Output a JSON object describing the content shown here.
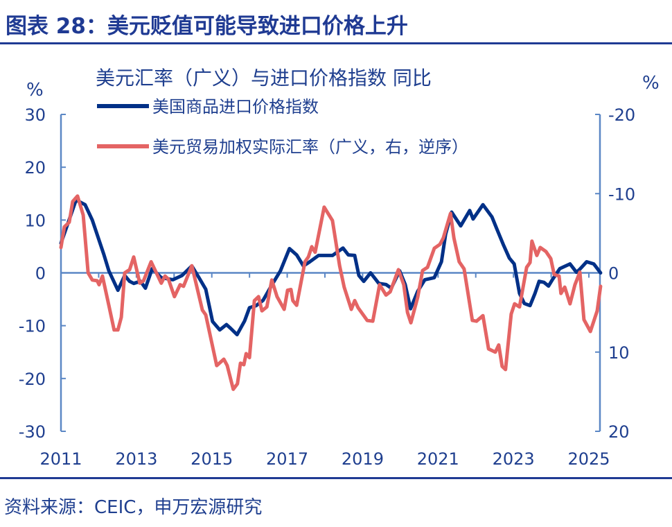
{
  "header": {
    "title": "图表 28：美元贬值可能导致进口价格上升"
  },
  "footer": {
    "source": "资料来源：CEIC，申万宏源研究"
  },
  "colors": {
    "accent": "#1f3a93",
    "axis": "#5b87c5",
    "series_blue": "#003087",
    "series_red": "#e46464"
  },
  "chart_data": {
    "type": "line",
    "title": "美元汇率（广义）与进口价格指数 同比",
    "ylabel_left": "%",
    "ylabel_right": "%",
    "ylim_left": [
      -30,
      30
    ],
    "ylim_right": [
      20,
      -20
    ],
    "right_axis_reversed": true,
    "xlim": [
      2011,
      2025.3
    ],
    "x_ticks": [
      "2011",
      "2013",
      "2015",
      "2017",
      "2019",
      "2021",
      "2023",
      "2025"
    ],
    "y_ticks_left": [
      "30",
      "20",
      "10",
      "0",
      "-10",
      "-20",
      "-30"
    ],
    "y_ticks_right": [
      "-20",
      "-10",
      "0",
      "10",
      "20"
    ],
    "grid": false,
    "legend": "top-left",
    "series": [
      {
        "name": "美国商品进口价格指数",
        "axis": "left",
        "x": [
          2011.0,
          2011.4,
          2011.64,
          2011.83,
          2012.14,
          2012.27,
          2012.51,
          2012.69,
          2012.82,
          2012.93,
          2013.11,
          2013.24,
          2013.42,
          2013.66,
          2013.97,
          2014.21,
          2014.47,
          2014.66,
          2014.84,
          2015.02,
          2015.21,
          2015.39,
          2015.5,
          2015.67,
          2015.87,
          2016.0,
          2016.18,
          2016.36,
          2016.6,
          2016.82,
          2017.06,
          2017.25,
          2017.43,
          2017.6,
          2017.83,
          2018.2,
          2018.48,
          2018.62,
          2018.79,
          2018.9,
          2019.03,
          2019.21,
          2019.43,
          2019.62,
          2019.76,
          2019.98,
          2020.13,
          2020.27,
          2020.46,
          2020.65,
          2020.9,
          2021.09,
          2021.2,
          2021.36,
          2021.6,
          2021.84,
          2021.93,
          2022.19,
          2022.43,
          2022.56,
          2022.74,
          2022.89,
          2023.02,
          2023.16,
          2023.29,
          2023.44,
          2023.57,
          2023.68,
          2023.81,
          2023.93,
          2024.04,
          2024.23,
          2024.5,
          2024.67,
          2024.76,
          2024.94,
          2025.13,
          2025.31
        ],
        "y": [
          5.6,
          13.8,
          12.9,
          10.0,
          3.4,
          0.4,
          -3.3,
          -0.5,
          -1.6,
          -2.0,
          -1.6,
          -2.9,
          0.8,
          -0.9,
          -1.3,
          -0.5,
          1.3,
          -0.9,
          -3.1,
          -9.2,
          -10.8,
          -9.8,
          -10.5,
          -11.7,
          -9.1,
          -6.6,
          -6.2,
          -5.2,
          -2.2,
          0.4,
          4.6,
          3.4,
          1.3,
          2.1,
          3.3,
          3.3,
          4.7,
          3.4,
          3.3,
          -0.5,
          -1.6,
          0.0,
          -2.0,
          -2.2,
          -2.9,
          0.4,
          -2.2,
          -6.8,
          -3.5,
          -1.3,
          -0.9,
          2.1,
          7.3,
          11.5,
          8.9,
          11.8,
          10.2,
          12.9,
          10.6,
          8.3,
          5.2,
          2.8,
          1.7,
          -3.9,
          -5.8,
          -6.2,
          -3.9,
          -1.6,
          -1.8,
          -2.5,
          -1.2,
          0.8,
          1.7,
          0.1,
          0.7,
          2.1,
          1.7,
          0.0
        ]
      },
      {
        "name": "美元贸易加权实际汇率（广义，右，逆序）",
        "axis": "right",
        "x": [
          2011.0,
          2011.09,
          2011.22,
          2011.31,
          2011.44,
          2011.59,
          2011.72,
          2011.83,
          2011.96,
          2012.01,
          2012.1,
          2012.27,
          2012.41,
          2012.51,
          2012.6,
          2012.69,
          2012.82,
          2012.93,
          2013.09,
          2013.19,
          2013.39,
          2013.66,
          2013.76,
          2013.85,
          2014.01,
          2014.16,
          2014.25,
          2014.47,
          2014.75,
          2014.84,
          2015.13,
          2015.32,
          2015.41,
          2015.57,
          2015.68,
          2015.76,
          2015.85,
          2015.91,
          2016.0,
          2016.13,
          2016.24,
          2016.33,
          2016.46,
          2016.59,
          2016.73,
          2016.92,
          2017.01,
          2017.1,
          2017.15,
          2017.25,
          2017.47,
          2017.56,
          2017.65,
          2017.74,
          2017.98,
          2018.2,
          2018.39,
          2018.51,
          2018.7,
          2018.79,
          2018.88,
          2019.03,
          2019.12,
          2019.27,
          2019.45,
          2019.62,
          2019.73,
          2019.95,
          2020.09,
          2020.19,
          2020.28,
          2020.46,
          2020.59,
          2020.72,
          2020.9,
          2021.05,
          2021.14,
          2021.33,
          2021.42,
          2021.56,
          2021.69,
          2021.91,
          2022.02,
          2022.19,
          2022.34,
          2022.52,
          2022.61,
          2022.7,
          2022.79,
          2022.94,
          2023.03,
          2023.16,
          2023.35,
          2023.44,
          2023.49,
          2023.62,
          2023.71,
          2023.86,
          2023.99,
          2024.08,
          2024.21,
          2024.26,
          2024.36,
          2024.5,
          2024.63,
          2024.76,
          2024.87,
          2025.04,
          2025.22,
          2025.31
        ],
        "y": [
          -3.2,
          -5.8,
          -6.4,
          -9.0,
          -9.7,
          -7.3,
          0.0,
          0.9,
          1.0,
          1.5,
          0.4,
          4.1,
          7.2,
          7.2,
          5.6,
          0.0,
          -0.4,
          -2.0,
          1.3,
          1.0,
          -1.4,
          1.3,
          0.4,
          0.8,
          3.0,
          1.5,
          1.7,
          -0.9,
          4.7,
          5.3,
          11.7,
          10.9,
          11.7,
          14.7,
          14.0,
          11.4,
          11.6,
          10.2,
          10.7,
          3.5,
          3.0,
          4.8,
          4.3,
          0.9,
          3.0,
          4.6,
          2.2,
          2.1,
          3.5,
          4.1,
          -1.4,
          -2.0,
          -3.3,
          -2.6,
          -8.3,
          -6.6,
          -0.9,
          1.8,
          4.6,
          3.5,
          4.4,
          5.4,
          6.0,
          6.1,
          1.5,
          2.8,
          2.4,
          -0.4,
          1.5,
          5.0,
          6.3,
          3.1,
          -0.3,
          -0.7,
          -3.1,
          -3.6,
          -4.4,
          -7.5,
          -4.4,
          -1.4,
          -0.5,
          6.0,
          6.1,
          5.4,
          9.6,
          10.0,
          9.1,
          11.8,
          12.2,
          5.2,
          3.9,
          4.3,
          -0.7,
          -1.3,
          -4.0,
          -2.2,
          -3.2,
          -2.7,
          -1.8,
          0.2,
          0.4,
          2.6,
          1.8,
          3.9,
          1.5,
          -0.1,
          5.9,
          7.4,
          4.8,
          1.7
        ]
      }
    ]
  }
}
